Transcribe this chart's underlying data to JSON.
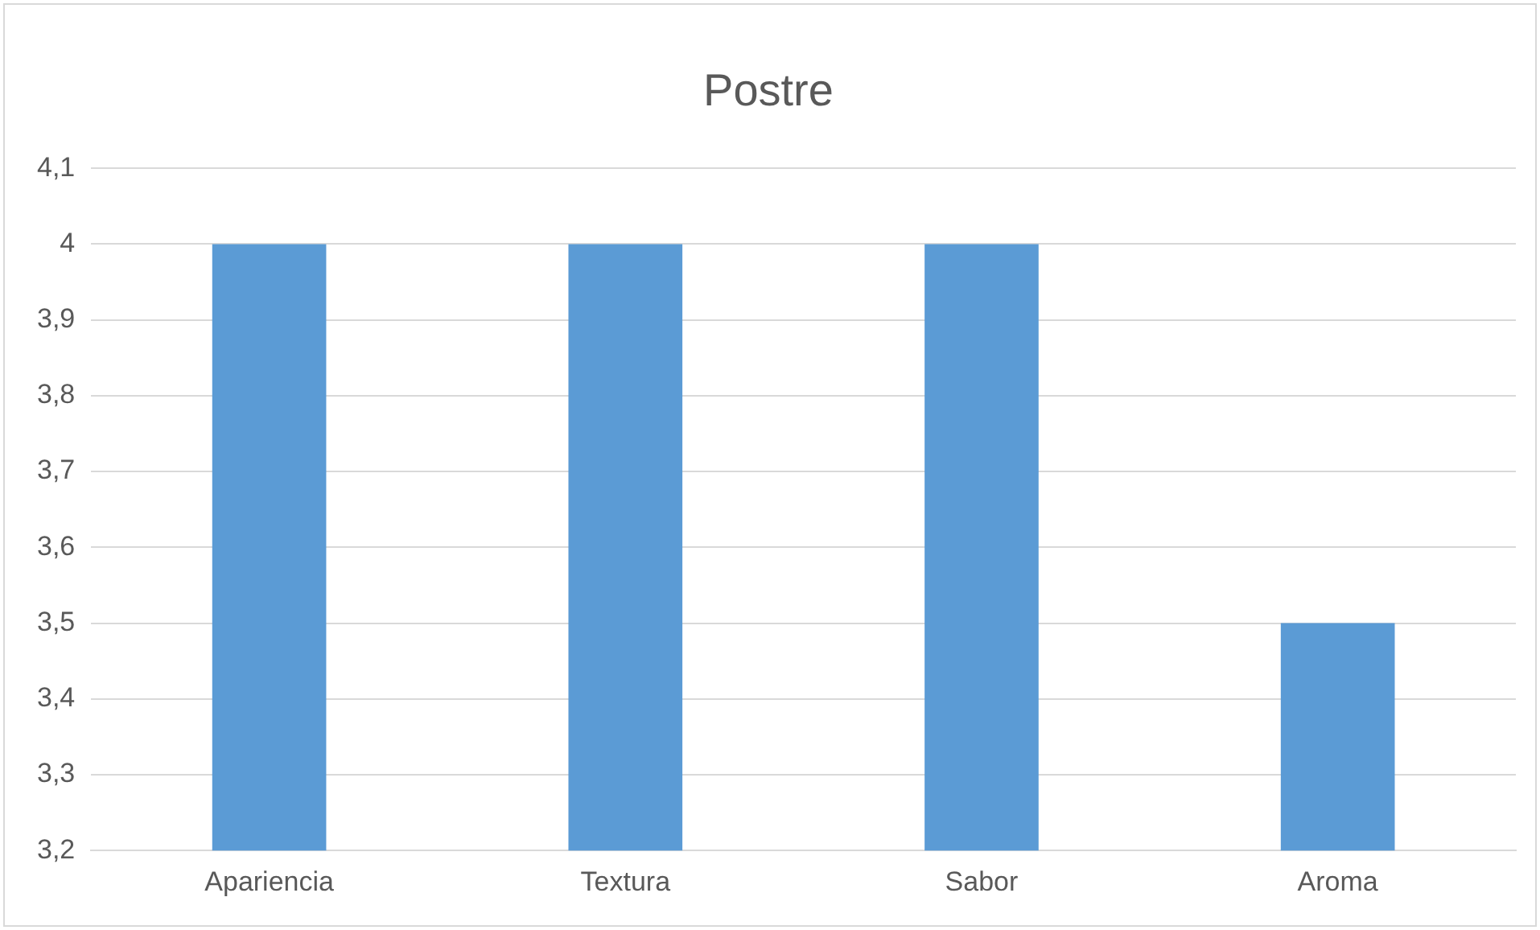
{
  "chart_data": {
    "type": "bar",
    "title": "Postre",
    "categories": [
      "Apariencia",
      "Textura",
      "Sabor",
      "Aroma"
    ],
    "values": [
      4,
      4,
      4,
      3.5
    ],
    "color": "#5b9bd5",
    "ylim": [
      3.2,
      4.1
    ],
    "yticks": [
      {
        "value": 3.2,
        "label": "3,2"
      },
      {
        "value": 3.3,
        "label": "3,3"
      },
      {
        "value": 3.4,
        "label": "3,4"
      },
      {
        "value": 3.5,
        "label": "3,5"
      },
      {
        "value": 3.6,
        "label": "3,6"
      },
      {
        "value": 3.7,
        "label": "3,7"
      },
      {
        "value": 3.8,
        "label": "3,8"
      },
      {
        "value": 3.9,
        "label": "3,9"
      },
      4,
      {
        "value": 4.1,
        "label": "4,1"
      }
    ],
    "grid": "y"
  }
}
